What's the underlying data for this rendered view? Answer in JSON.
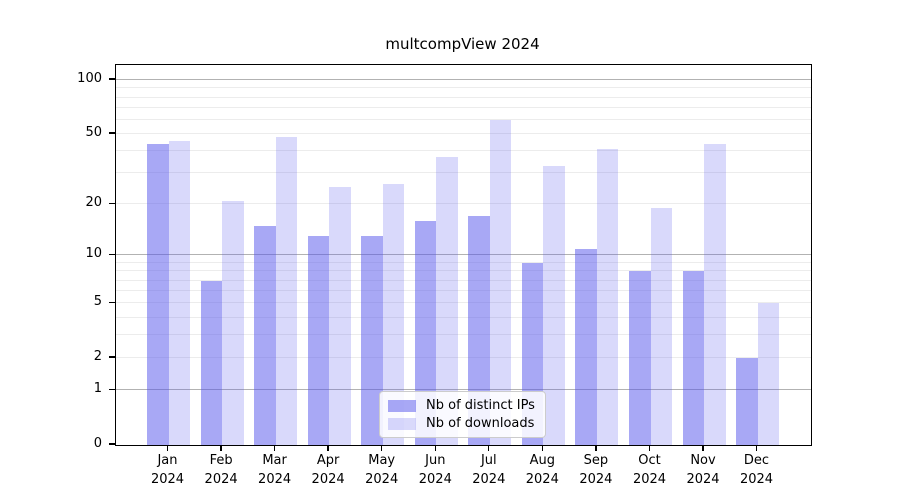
{
  "title": "multcompView 2024",
  "colors": {
    "bar_distinct_ips": "rgba(82,82,235,0.50)",
    "bar_downloads": "rgba(82,82,235,0.22)",
    "bar_distinct_ips_hex": "#a8a8f5",
    "bar_downloads_hex": "#d9d9f8",
    "major_gridline": "#b2b2b2",
    "minor_gridline": "#ececec",
    "axis": "#000000"
  },
  "legend": {
    "entries": [
      {
        "label": "Nb of distinct IPs"
      },
      {
        "label": "Nb of downloads"
      }
    ]
  },
  "chart_data": {
    "type": "bar",
    "title": "multcompView 2024",
    "categories": [
      "Jan",
      "Feb",
      "Mar",
      "Apr",
      "May",
      "Jun",
      "Jul",
      "Aug",
      "Sep",
      "Oct",
      "Nov",
      "Dec"
    ],
    "year": "2024",
    "series": [
      {
        "name": "Nb of distinct IPs",
        "values": [
          44,
          7,
          15,
          13,
          13,
          16,
          17,
          9,
          11,
          8,
          8,
          2
        ]
      },
      {
        "name": "Nb of downloads",
        "values": [
          46,
          21,
          48,
          25,
          26,
          37,
          60,
          33,
          41,
          19,
          44,
          5
        ]
      }
    ],
    "xlabel": "",
    "ylabel": "",
    "yscale": "log1p",
    "ylim": [
      0,
      121
    ],
    "y_ticks": [
      100,
      50,
      20,
      10,
      5,
      2,
      1,
      0
    ],
    "major_gridlines": [
      1,
      10,
      100
    ],
    "minor_gridlines": [
      2,
      3,
      4,
      5,
      6,
      7,
      8,
      9,
      20,
      30,
      40,
      50,
      60,
      70,
      80,
      90
    ],
    "grid": "on",
    "legend_position": "lower center"
  }
}
